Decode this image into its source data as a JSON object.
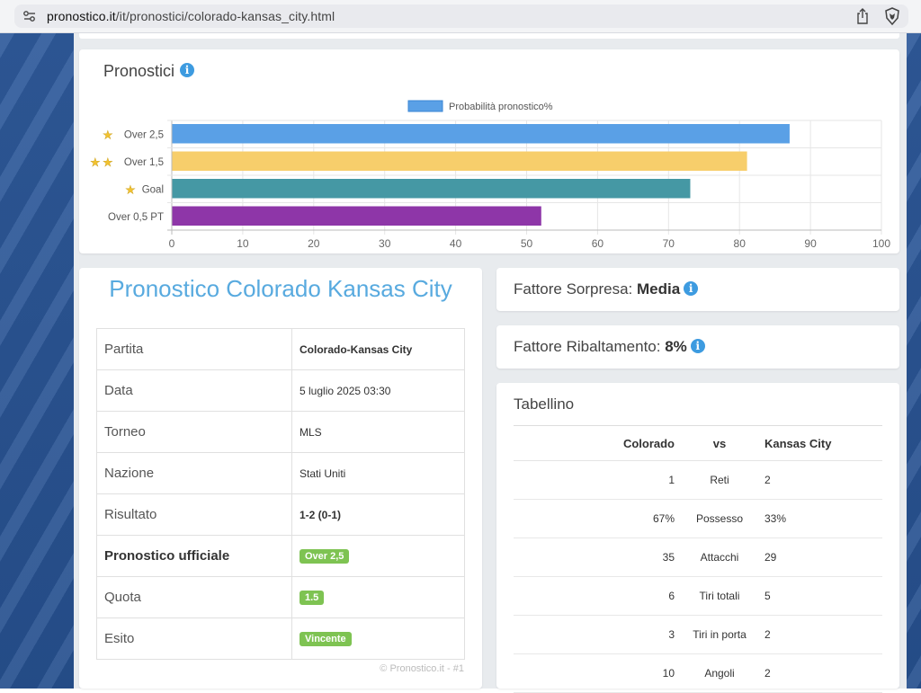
{
  "browser": {
    "url_domain": "pronostico.it",
    "url_path": "/it/pronostici/colorado-kansas_city.html"
  },
  "chart_card": {
    "title": "Pronostici"
  },
  "chart_data": {
    "type": "bar",
    "orientation": "horizontal",
    "legend": "Probabilità pronostico%",
    "legend_position": "top",
    "categories": [
      "Over 2,5",
      "Over 1,5",
      "Goal",
      "Over 0,5 PT"
    ],
    "stars": [
      1,
      2,
      1,
      0
    ],
    "values": [
      87,
      81,
      73,
      52
    ],
    "colors": [
      "#5aa0e6",
      "#f7ce6b",
      "#4598a4",
      "#8e36a8"
    ],
    "xlim": [
      0,
      100
    ],
    "xticks": [
      "0",
      "10",
      "20",
      "30",
      "40",
      "50",
      "60",
      "70",
      "80",
      "90",
      "100"
    ],
    "grid": true
  },
  "match": {
    "title": "Pronostico Colorado Kansas City",
    "rows": [
      {
        "label": "Partita",
        "value": "Colorado-Kansas City"
      },
      {
        "label": "Data",
        "value": "5 luglio 2025 03:30"
      },
      {
        "label": "Torneo",
        "value": "MLS"
      },
      {
        "label": "Nazione",
        "value": "Stati Uniti"
      },
      {
        "label": "Risultato",
        "value": "1-2 (0-1)"
      },
      {
        "label": "Pronostico ufficiale",
        "value": "Over 2,5"
      },
      {
        "label": "Quota",
        "value": "1.5"
      },
      {
        "label": "Esito",
        "value": "Vincente"
      }
    ],
    "copyright": "© Pronostico.it - #1"
  },
  "sorpresa": {
    "label": "Fattore Sorpresa:",
    "value": "Media"
  },
  "ribaltamento": {
    "label": "Fattore Ribaltamento:",
    "value": "8%"
  },
  "tabellino": {
    "title": "Tabellino",
    "header": [
      "Colorado",
      "vs",
      "Kansas City"
    ],
    "rows": [
      {
        "home": "1",
        "stat": "Reti",
        "away": "2"
      },
      {
        "home": "67%",
        "stat": "Possesso",
        "away": "33%"
      },
      {
        "home": "35",
        "stat": "Attacchi",
        "away": "29"
      },
      {
        "home": "6",
        "stat": "Tiri totali",
        "away": "5"
      },
      {
        "home": "3",
        "stat": "Tiri in porta",
        "away": "2"
      },
      {
        "home": "10",
        "stat": "Angoli",
        "away": "2"
      }
    ]
  },
  "colors": {
    "accent_blue": "#58aadf",
    "badge_green": "#7ec352",
    "page_bg": "#2f5a9b"
  }
}
